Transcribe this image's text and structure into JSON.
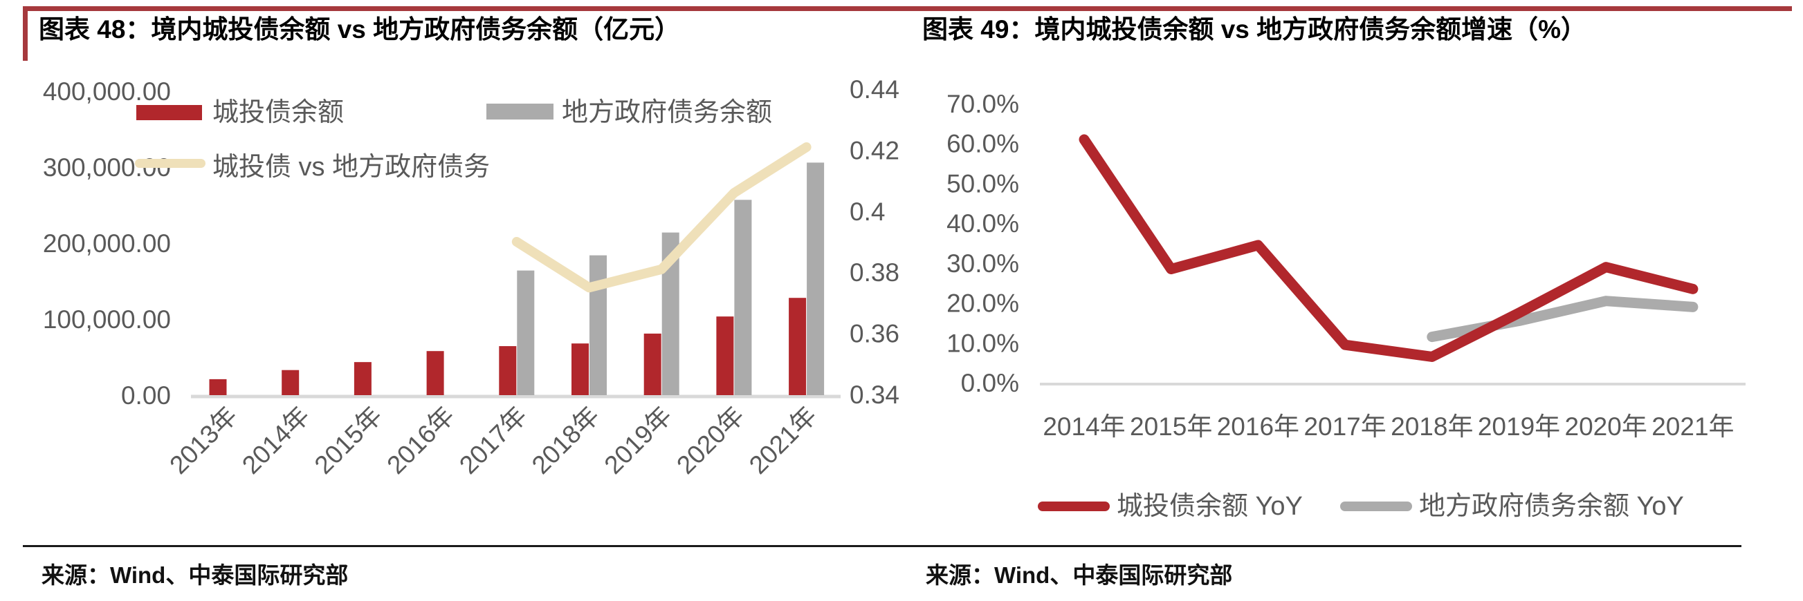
{
  "page": {
    "background": "#FFFFFF",
    "accent_red": "#A6393D",
    "divider_color": "#1A1A1A",
    "axis_text_color": "#595959",
    "axis_line_color": "#D9D9D9"
  },
  "figure48": {
    "title": "图表 48：境内城投债余额 vs 地方政府债务余额（亿元）",
    "source": "来源：Wind、中泰国际研究部"
  },
  "figure49": {
    "title": "图表 49：境内城投债余额 vs 地方政府债务余额增速（%）",
    "source": "来源：Wind、中泰国际研究部"
  },
  "chart_data": [
    {
      "type": "bar+line",
      "title": "境内城投债余额 vs 地方政府债务余额（亿元）",
      "categories": [
        "2013年",
        "2014年",
        "2015年",
        "2016年",
        "2017年",
        "2018年",
        "2019年",
        "2020年",
        "2021年"
      ],
      "series": [
        {
          "name": "城投债余额",
          "type": "bar",
          "axis": "left",
          "color": "#B1272C",
          "values": [
            21000,
            33000,
            43500,
            58000,
            64500,
            68000,
            81000,
            103500,
            128000
          ]
        },
        {
          "name": "地方政府债务余额",
          "type": "bar",
          "axis": "left",
          "color": "#ABABAB",
          "values": [
            null,
            null,
            null,
            null,
            164000,
            184000,
            214000,
            257000,
            306000
          ]
        },
        {
          "name": "城投债 vs 地方政府债务",
          "type": "line",
          "axis": "right",
          "color": "#EFE0B9",
          "values": [
            null,
            null,
            null,
            null,
            0.39,
            0.375,
            0.381,
            0.406,
            0.421
          ]
        }
      ],
      "left_axis": {
        "min": 0,
        "max": 400000,
        "ticks": [
          "400,000.00",
          "300,000.00",
          "200,000.00",
          "100,000.00",
          "0.00"
        ],
        "tick_values": [
          400000,
          300000,
          200000,
          100000,
          0
        ]
      },
      "right_axis": {
        "min": 0.34,
        "max": 0.44,
        "ticks": [
          "0.44",
          "0.42",
          "0.4",
          "0.38",
          "0.36",
          "0.34"
        ],
        "tick_values": [
          0.44,
          0.42,
          0.4,
          0.38,
          0.36,
          0.34
        ]
      },
      "grid": false,
      "legend_position": "top-left-overlay"
    },
    {
      "type": "line",
      "title": "境内城投债余额 vs 地方政府债务余额增速（%）",
      "categories": [
        "2014年",
        "2015年",
        "2016年",
        "2017年",
        "2018年",
        "2019年",
        "2020年",
        "2021年"
      ],
      "series": [
        {
          "name": "城投债余额 YoY",
          "type": "line",
          "color": "#B1272C",
          "values": [
            61.0,
            28.5,
            34.5,
            9.5,
            6.5,
            17.5,
            29.0,
            23.5
          ]
        },
        {
          "name": "地方政府债务余额 YoY",
          "type": "line",
          "color": "#ABABAB",
          "values": [
            null,
            null,
            null,
            null,
            11.5,
            15.5,
            20.5,
            19.0
          ]
        }
      ],
      "y_axis": {
        "min": 0,
        "max": 70,
        "unit": "%",
        "ticks": [
          "70.0%",
          "60.0%",
          "50.0%",
          "40.0%",
          "30.0%",
          "20.0%",
          "10.0%",
          "0.0%"
        ],
        "tick_values": [
          70,
          60,
          50,
          40,
          30,
          20,
          10,
          0
        ]
      },
      "grid": false,
      "legend_position": "bottom-center"
    }
  ]
}
